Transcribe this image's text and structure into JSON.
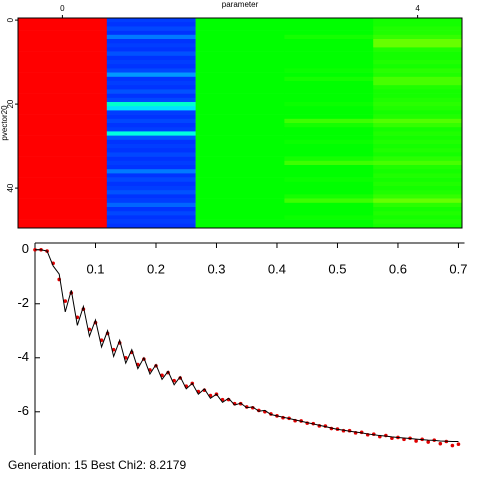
{
  "chart_data": [
    {
      "type": "heatmap",
      "x_label": "parameter",
      "y_label": "pvector20",
      "xlim": [
        -0.5,
        4.5
      ],
      "ylim": [
        -0.5,
        49.5
      ],
      "xticks": [
        0,
        4
      ],
      "yticks": [
        0,
        20,
        40
      ],
      "zlim": [
        0,
        1
      ],
      "colormap": [
        "#0000ff",
        "#00ffff",
        "#00ff00",
        "#ffff00",
        "#ff0000"
      ],
      "z": [
        [
          1,
          0.06,
          0.5,
          0.5,
          0.52
        ],
        [
          1,
          0.05,
          0.5,
          0.5,
          0.52
        ],
        [
          1,
          0.07,
          0.5,
          0.5,
          0.53
        ],
        [
          1,
          0.05,
          0.5,
          0.5,
          0.53
        ],
        [
          1,
          0.12,
          0.5,
          0.52,
          0.55
        ],
        [
          1,
          0.05,
          0.5,
          0.5,
          0.6
        ],
        [
          1,
          0.06,
          0.5,
          0.5,
          0.6
        ],
        [
          1,
          0.05,
          0.5,
          0.5,
          0.53
        ],
        [
          1,
          0.08,
          0.5,
          0.5,
          0.52
        ],
        [
          1,
          0.05,
          0.5,
          0.5,
          0.52
        ],
        [
          1,
          0.06,
          0.5,
          0.5,
          0.53
        ],
        [
          1,
          0.05,
          0.5,
          0.5,
          0.52
        ],
        [
          1,
          0.07,
          0.5,
          0.51,
          0.54
        ],
        [
          1,
          0.15,
          0.5,
          0.5,
          0.53
        ],
        [
          1,
          0.05,
          0.5,
          0.52,
          0.57
        ],
        [
          1,
          0.06,
          0.5,
          0.5,
          0.57
        ],
        [
          1,
          0.05,
          0.5,
          0.5,
          0.53
        ],
        [
          1,
          0.08,
          0.5,
          0.5,
          0.52
        ],
        [
          1,
          0.05,
          0.5,
          0.5,
          0.52
        ],
        [
          1,
          0.07,
          0.5,
          0.5,
          0.53
        ],
        [
          1,
          0.3,
          0.5,
          0.51,
          0.54
        ],
        [
          1,
          0.22,
          0.5,
          0.5,
          0.53
        ],
        [
          1,
          0.06,
          0.5,
          0.5,
          0.52
        ],
        [
          1,
          0.05,
          0.5,
          0.5,
          0.53
        ],
        [
          1,
          0.07,
          0.5,
          0.56,
          0.58
        ],
        [
          1,
          0.05,
          0.5,
          0.52,
          0.55
        ],
        [
          1,
          0.06,
          0.5,
          0.5,
          0.52
        ],
        [
          1,
          0.28,
          0.5,
          0.5,
          0.53
        ],
        [
          1,
          0.08,
          0.5,
          0.5,
          0.52
        ],
        [
          1,
          0.05,
          0.5,
          0.51,
          0.53
        ],
        [
          1,
          0.06,
          0.5,
          0.5,
          0.52
        ],
        [
          1,
          0.05,
          0.5,
          0.5,
          0.53
        ],
        [
          1,
          0.07,
          0.5,
          0.5,
          0.52
        ],
        [
          1,
          0.05,
          0.5,
          0.52,
          0.54
        ],
        [
          1,
          0.06,
          0.5,
          0.56,
          0.57
        ],
        [
          1,
          0.05,
          0.5,
          0.5,
          0.53
        ],
        [
          1,
          0.12,
          0.5,
          0.5,
          0.52
        ],
        [
          1,
          0.05,
          0.5,
          0.5,
          0.53
        ],
        [
          1,
          0.07,
          0.5,
          0.51,
          0.52
        ],
        [
          1,
          0.05,
          0.5,
          0.5,
          0.53
        ],
        [
          1,
          0.06,
          0.5,
          0.5,
          0.52
        ],
        [
          1,
          0.08,
          0.5,
          0.5,
          0.53
        ],
        [
          1,
          0.05,
          0.5,
          0.52,
          0.55
        ],
        [
          1,
          0.06,
          0.5,
          0.56,
          0.6
        ],
        [
          1,
          0.1,
          0.5,
          0.5,
          0.54
        ],
        [
          1,
          0.05,
          0.5,
          0.5,
          0.52
        ],
        [
          1,
          0.07,
          0.5,
          0.5,
          0.53
        ],
        [
          1,
          0.05,
          0.5,
          0.51,
          0.52
        ],
        [
          1,
          0.06,
          0.5,
          0.5,
          0.53
        ],
        [
          1,
          0.05,
          0.5,
          0.5,
          0.52
        ]
      ]
    },
    {
      "type": "line",
      "annotation": "Generation: 15 Best Chi2: 8.2179",
      "xlim": [
        0,
        0.71
      ],
      "ylim": [
        -7.6,
        0.25
      ],
      "xticks": [
        0.1,
        0.2,
        0.3,
        0.4,
        0.5,
        0.6,
        0.7
      ],
      "yticks": [
        0,
        -2,
        -4,
        -6
      ],
      "x": [
        0,
        0.01,
        0.02,
        0.03,
        0.04,
        0.05,
        0.06,
        0.07,
        0.08,
        0.09,
        0.1,
        0.11,
        0.12,
        0.13,
        0.14,
        0.15,
        0.16,
        0.17,
        0.18,
        0.19,
        0.2,
        0.21,
        0.22,
        0.23,
        0.24,
        0.25,
        0.26,
        0.27,
        0.28,
        0.29,
        0.3,
        0.31,
        0.32,
        0.33,
        0.34,
        0.35,
        0.36,
        0.37,
        0.38,
        0.39,
        0.4,
        0.41,
        0.42,
        0.43,
        0.44,
        0.45,
        0.46,
        0.47,
        0.48,
        0.49,
        0.5,
        0.51,
        0.52,
        0.53,
        0.54,
        0.55,
        0.56,
        0.57,
        0.58,
        0.59,
        0.6,
        0.61,
        0.62,
        0.63,
        0.64,
        0.65,
        0.66,
        0.67,
        0.68,
        0.69,
        0.7
      ],
      "series": [
        {
          "color": "#e00000",
          "marker": "dot",
          "values": [
            0,
            0,
            -0.05,
            -0.5,
            -1.1,
            -1.9,
            -1.6,
            -2.5,
            -2.2,
            -2.95,
            -2.7,
            -3.35,
            -3.1,
            -3.7,
            -3.45,
            -4.0,
            -3.8,
            -4.25,
            -4.05,
            -4.45,
            -4.3,
            -4.65,
            -4.55,
            -4.85,
            -4.75,
            -5.05,
            -4.95,
            -5.25,
            -5.2,
            -5.4,
            -5.35,
            -5.55,
            -5.55,
            -5.7,
            -5.7,
            -5.82,
            -5.85,
            -5.95,
            -6.0,
            -6.08,
            -6.15,
            -6.22,
            -6.24,
            -6.33,
            -6.34,
            -6.42,
            -6.44,
            -6.52,
            -6.53,
            -6.62,
            -6.64,
            -6.7,
            -6.7,
            -6.78,
            -6.76,
            -6.85,
            -6.83,
            -6.92,
            -6.88,
            -6.98,
            -6.95,
            -7.02,
            -6.98,
            -7.08,
            -7.02,
            -7.12,
            -7.05,
            -7.18,
            -7.1,
            -7.25,
            -7.2
          ]
        },
        {
          "color": "#000000",
          "marker": "line",
          "values": [
            0,
            0,
            -0.05,
            -0.6,
            -0.9,
            -2.3,
            -1.5,
            -2.8,
            -2.1,
            -3.2,
            -2.6,
            -3.6,
            -3.0,
            -3.95,
            -3.35,
            -4.2,
            -3.7,
            -4.4,
            -4.0,
            -4.6,
            -4.25,
            -4.8,
            -4.5,
            -5.0,
            -4.7,
            -5.15,
            -4.95,
            -5.35,
            -5.15,
            -5.5,
            -5.35,
            -5.65,
            -5.5,
            -5.75,
            -5.68,
            -5.85,
            -5.82,
            -5.98,
            -5.95,
            -6.1,
            -6.15,
            -6.2,
            -6.25,
            -6.3,
            -6.35,
            -6.4,
            -6.45,
            -6.5,
            -6.55,
            -6.6,
            -6.65,
            -6.68,
            -6.72,
            -6.75,
            -6.78,
            -6.82,
            -6.85,
            -6.88,
            -6.9,
            -6.93,
            -6.95,
            -6.97,
            -6.99,
            -7.01,
            -7.03,
            -7.05,
            -7.06,
            -7.08,
            -7.09,
            -7.1,
            -7.1
          ]
        }
      ]
    }
  ]
}
